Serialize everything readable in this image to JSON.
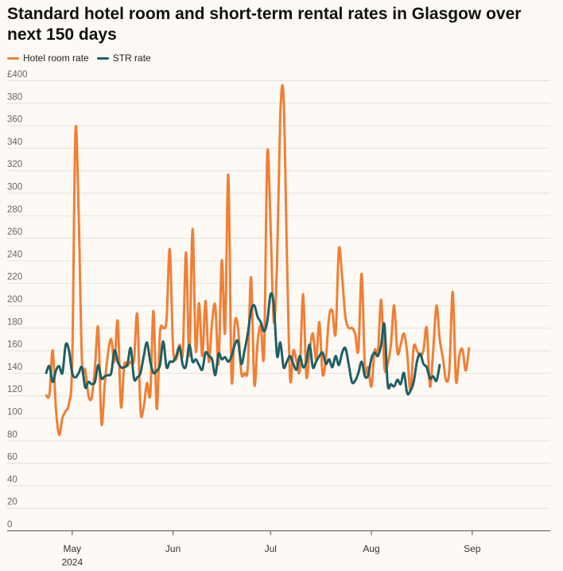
{
  "chart_data": {
    "type": "line",
    "title": "Standard hotel room and short-term rental rates in Glasgow over next 150 days",
    "xlabel": "",
    "ylabel": "",
    "ylim": [
      0,
      400
    ],
    "y_ticks": [
      "£400",
      "380",
      "360",
      "340",
      "320",
      "300",
      "280",
      "260",
      "240",
      "220",
      "200",
      "180",
      "160",
      "140",
      "120",
      "100",
      "80",
      "60",
      "40",
      "20",
      "0"
    ],
    "y_tick_values": [
      400,
      380,
      360,
      340,
      320,
      300,
      280,
      260,
      240,
      220,
      200,
      180,
      160,
      140,
      120,
      100,
      80,
      60,
      40,
      20,
      0
    ],
    "x_ticks": [
      {
        "label": "May",
        "sub": "2024",
        "day": 2
      },
      {
        "label": "Jun",
        "sub": "",
        "day": 33
      },
      {
        "label": "Jul",
        "sub": "",
        "day": 63
      },
      {
        "label": "Aug",
        "sub": "",
        "day": 94
      },
      {
        "label": "Sep",
        "sub": "",
        "day": 125
      }
    ],
    "x_range": [
      -18,
      149
    ],
    "grid": true,
    "legend": "top-left",
    "series": [
      {
        "name": "Hotel room rate",
        "color": "#f07f35",
        "points": [
          [
            -6,
            120
          ],
          [
            -5,
            121
          ],
          [
            -4,
            160
          ],
          [
            -3,
            108
          ],
          [
            -2,
            85
          ],
          [
            -1,
            100
          ],
          [
            0,
            106
          ],
          [
            1,
            113
          ],
          [
            2,
            150
          ],
          [
            3,
            355
          ],
          [
            4,
            280
          ],
          [
            5,
            150
          ],
          [
            6,
            143
          ],
          [
            7,
            120
          ],
          [
            8,
            118
          ],
          [
            9,
            145
          ],
          [
            10,
            180
          ],
          [
            11,
            95
          ],
          [
            12,
            130
          ],
          [
            13,
            157
          ],
          [
            14,
            170
          ],
          [
            15,
            150
          ],
          [
            16,
            186
          ],
          [
            17,
            110
          ],
          [
            18,
            147
          ],
          [
            19,
            146
          ],
          [
            20,
            150
          ],
          [
            21,
            151
          ],
          [
            22,
            192
          ],
          [
            23,
            107
          ],
          [
            24,
            110
          ],
          [
            25,
            131
          ],
          [
            26,
            121
          ],
          [
            27,
            195
          ],
          [
            28,
            108
          ],
          [
            29,
            176
          ],
          [
            30,
            180
          ],
          [
            31,
            187
          ],
          [
            32,
            250
          ],
          [
            33,
            163
          ],
          [
            34,
            152
          ],
          [
            35,
            165
          ],
          [
            36,
            158
          ],
          [
            37,
            247
          ],
          [
            38,
            155
          ],
          [
            39,
            268
          ],
          [
            40,
            160
          ],
          [
            41,
            202
          ],
          [
            42,
            155
          ],
          [
            43,
            204
          ],
          [
            44,
            150
          ],
          [
            45,
            185
          ],
          [
            46,
            200
          ],
          [
            47,
            148
          ],
          [
            48,
            240
          ],
          [
            49,
            176
          ],
          [
            50,
            316
          ],
          [
            51,
            135
          ],
          [
            52,
            185
          ],
          [
            53,
            180
          ],
          [
            54,
            140
          ],
          [
            55,
            140
          ],
          [
            56,
            145
          ],
          [
            57,
            225
          ],
          [
            58,
            130
          ],
          [
            59,
            167
          ],
          [
            60,
            182
          ],
          [
            61,
            158
          ],
          [
            62,
            335
          ],
          [
            63,
            270
          ],
          [
            64,
            185
          ],
          [
            65,
            240
          ],
          [
            66,
            370
          ],
          [
            67,
            385
          ],
          [
            68,
            248
          ],
          [
            69,
            135
          ],
          [
            70,
            160
          ],
          [
            71,
            150
          ],
          [
            72,
            143
          ],
          [
            73,
            210
          ],
          [
            74,
            137
          ],
          [
            75,
            160
          ],
          [
            76,
            175
          ],
          [
            77,
            152
          ],
          [
            78,
            185
          ],
          [
            79,
            139
          ],
          [
            80,
            153
          ],
          [
            81,
            190
          ],
          [
            82,
            195
          ],
          [
            83,
            175
          ],
          [
            84,
            250
          ],
          [
            85,
            225
          ],
          [
            86,
            190
          ],
          [
            87,
            180
          ],
          [
            88,
            180
          ],
          [
            89,
            175
          ],
          [
            90,
            160
          ],
          [
            91,
            228
          ],
          [
            92,
            145
          ],
          [
            93,
            145
          ],
          [
            94,
            128
          ],
          [
            95,
            160
          ],
          [
            96,
            158
          ],
          [
            97,
            205
          ],
          [
            98,
            145
          ],
          [
            99,
            148
          ],
          [
            100,
            165
          ],
          [
            101,
            200
          ],
          [
            102,
            158
          ],
          [
            103,
            165
          ],
          [
            104,
            175
          ],
          [
            105,
            158
          ],
          [
            106,
            124
          ],
          [
            107,
            163
          ],
          [
            108,
            160
          ],
          [
            109,
            155
          ],
          [
            110,
            160
          ],
          [
            111,
            180
          ],
          [
            112,
            128
          ],
          [
            113,
            160
          ],
          [
            114,
            200
          ],
          [
            115,
            170
          ],
          [
            116,
            153
          ],
          [
            117,
            133
          ],
          [
            118,
            144
          ],
          [
            119,
            212
          ],
          [
            120,
            133
          ],
          [
            121,
            155
          ],
          [
            122,
            161
          ],
          [
            123,
            142
          ],
          [
            124,
            162
          ]
        ]
      },
      {
        "name": "STR rate",
        "color": "#1f5f64",
        "points": [
          [
            -6,
            140
          ],
          [
            -5,
            146
          ],
          [
            -4,
            132
          ],
          [
            -3,
            142
          ],
          [
            -2,
            146
          ],
          [
            -1,
            140
          ],
          [
            0,
            165
          ],
          [
            1,
            160
          ],
          [
            2,
            140
          ],
          [
            3,
            136
          ],
          [
            4,
            140
          ],
          [
            5,
            145
          ],
          [
            6,
            127
          ],
          [
            7,
            132
          ],
          [
            8,
            130
          ],
          [
            9,
            132
          ],
          [
            10,
            147
          ],
          [
            11,
            135
          ],
          [
            12,
            137
          ],
          [
            13,
            138
          ],
          [
            14,
            140
          ],
          [
            15,
            160
          ],
          [
            16,
            150
          ],
          [
            17,
            145
          ],
          [
            18,
            145
          ],
          [
            19,
            148
          ],
          [
            20,
            162
          ],
          [
            21,
            135
          ],
          [
            22,
            136
          ],
          [
            23,
            140
          ],
          [
            24,
            155
          ],
          [
            25,
            167
          ],
          [
            26,
            150
          ],
          [
            27,
            140
          ],
          [
            28,
            142
          ],
          [
            29,
            147
          ],
          [
            30,
            168
          ],
          [
            31,
            145
          ],
          [
            32,
            150
          ],
          [
            33,
            150
          ],
          [
            34,
            155
          ],
          [
            35,
            163
          ],
          [
            36,
            147
          ],
          [
            37,
            146
          ],
          [
            38,
            165
          ],
          [
            39,
            150
          ],
          [
            40,
            152
          ],
          [
            41,
            147
          ],
          [
            42,
            143
          ],
          [
            43,
            158
          ],
          [
            44,
            155
          ],
          [
            45,
            152
          ],
          [
            46,
            138
          ],
          [
            47,
            157
          ],
          [
            48,
            152
          ],
          [
            49,
            154
          ],
          [
            50,
            150
          ],
          [
            51,
            155
          ],
          [
            52,
            165
          ],
          [
            53,
            168
          ],
          [
            54,
            148
          ],
          [
            55,
            160
          ],
          [
            56,
            175
          ],
          [
            57,
            195
          ],
          [
            58,
            200
          ],
          [
            59,
            190
          ],
          [
            60,
            185
          ],
          [
            61,
            177
          ],
          [
            62,
            186
          ],
          [
            63,
            210
          ],
          [
            64,
            200
          ],
          [
            65,
            155
          ],
          [
            66,
            167
          ],
          [
            67,
            145
          ],
          [
            68,
            150
          ],
          [
            69,
            155
          ],
          [
            70,
            148
          ],
          [
            71,
            143
          ],
          [
            72,
            155
          ],
          [
            73,
            145
          ],
          [
            74,
            150
          ],
          [
            75,
            165
          ],
          [
            76,
            145
          ],
          [
            77,
            150
          ],
          [
            78,
            155
          ],
          [
            79,
            158
          ],
          [
            80,
            148
          ],
          [
            81,
            152
          ],
          [
            82,
            145
          ],
          [
            83,
            155
          ],
          [
            84,
            147
          ],
          [
            85,
            158
          ],
          [
            86,
            162
          ],
          [
            87,
            148
          ],
          [
            88,
            132
          ],
          [
            89,
            133
          ],
          [
            90,
            140
          ],
          [
            91,
            150
          ],
          [
            92,
            137
          ],
          [
            93,
            138
          ],
          [
            94,
            153
          ],
          [
            95,
            158
          ],
          [
            96,
            155
          ],
          [
            97,
            165
          ],
          [
            98,
            183
          ],
          [
            99,
            130
          ],
          [
            100,
            130
          ],
          [
            101,
            128
          ],
          [
            102,
            134
          ],
          [
            103,
            130
          ],
          [
            104,
            140
          ],
          [
            105,
            122
          ],
          [
            106,
            124
          ],
          [
            107,
            132
          ],
          [
            108,
            150
          ],
          [
            109,
            157
          ],
          [
            110,
            148
          ],
          [
            111,
            145
          ],
          [
            112,
            135
          ],
          [
            113,
            137
          ],
          [
            114,
            133
          ],
          [
            115,
            147
          ]
        ]
      }
    ]
  }
}
